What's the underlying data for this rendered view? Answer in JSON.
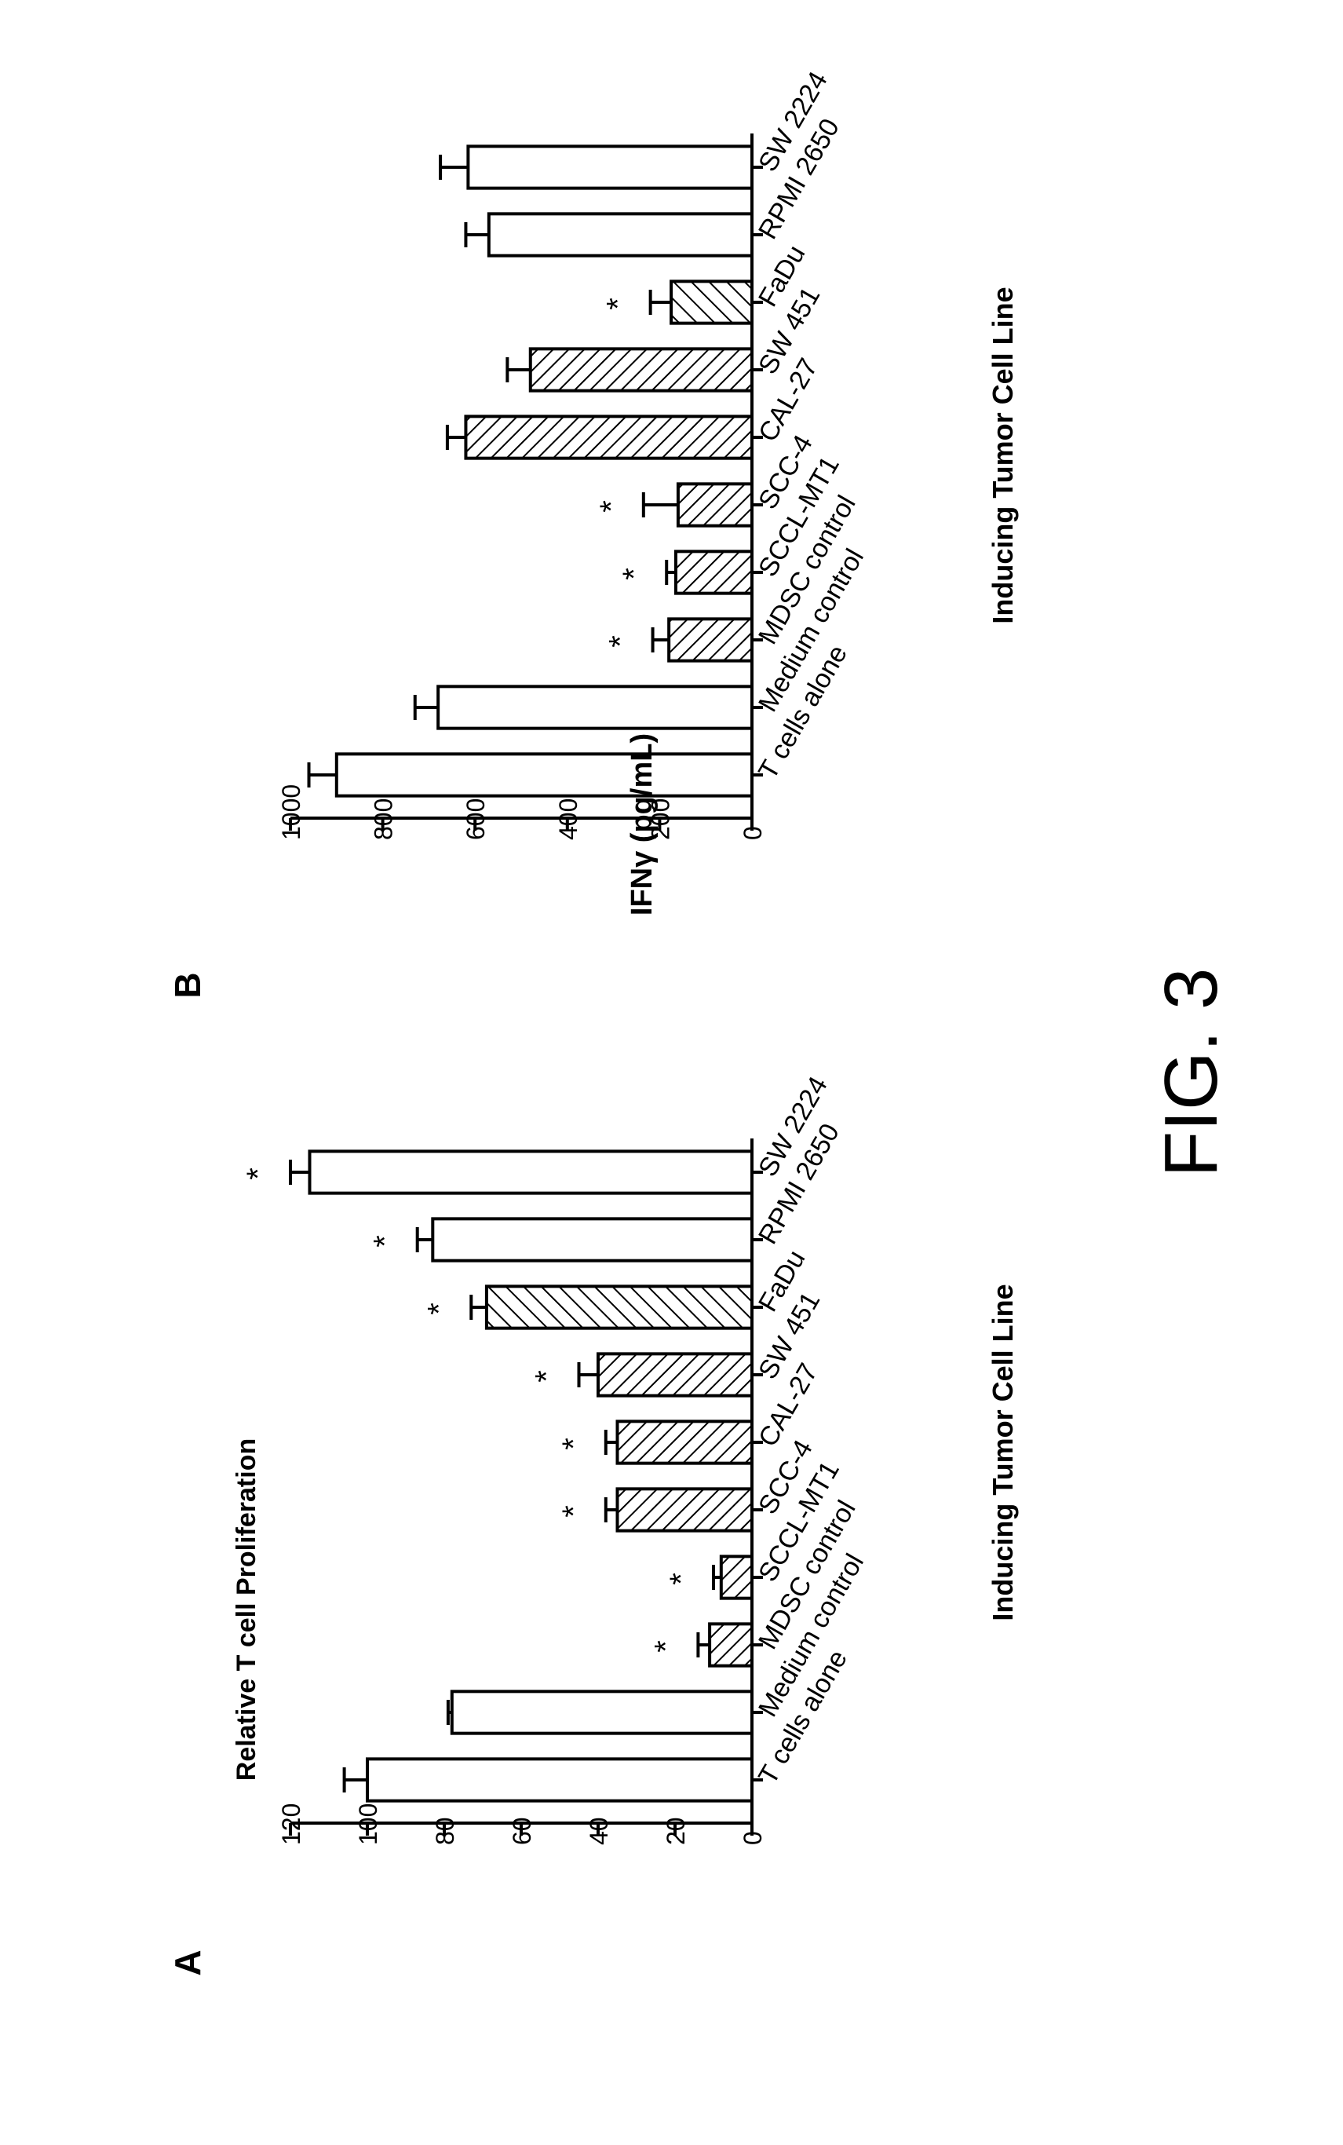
{
  "figure_label": "FIG. 3",
  "colors": {
    "ink": "#000000",
    "background": "#ffffff"
  },
  "chart_data": [
    {
      "type": "bar",
      "panel": "A",
      "title": "",
      "ylabel": "Relative T cell Proliferation",
      "xlabel": "Inducing Tumor Cell Line",
      "ylim": [
        0,
        120
      ],
      "yticks": [
        0,
        20,
        40,
        60,
        80,
        100,
        120
      ],
      "categories": [
        "T cells alone",
        "Medium control",
        "MDSC control",
        "SCCL-MT1",
        "SCC-4",
        "CAL-27",
        "SW 451",
        "FaDu",
        "RPMI 2650",
        "SW 2224"
      ],
      "values": [
        100,
        78,
        11,
        8,
        35,
        35,
        40,
        69,
        83,
        115
      ],
      "errors": [
        6,
        1,
        3,
        2,
        3,
        3,
        5,
        4,
        4,
        5
      ],
      "significant": [
        false,
        false,
        true,
        true,
        true,
        true,
        true,
        true,
        true,
        true
      ],
      "fill_patterns": [
        "none",
        "none",
        "hatch-forward",
        "hatch-forward",
        "hatch-forward",
        "hatch-forward",
        "hatch-forward",
        "hatch-back",
        "none",
        "none"
      ],
      "asterisk": "*",
      "grid": false,
      "legend": "none"
    },
    {
      "type": "bar",
      "panel": "B",
      "title": "",
      "ylabel": "IFNγ (pg/mL)",
      "xlabel": "Inducing Tumor Cell Line",
      "ylim": [
        0,
        1000
      ],
      "yticks": [
        0,
        200,
        400,
        600,
        800,
        1000
      ],
      "categories": [
        "T cells alone",
        "Medium control",
        "MDSC control",
        "SCCL-MT1",
        "SCC-4",
        "CAL-27",
        "SW 451",
        "FaDu",
        "RPMI 2650",
        "SW 2224"
      ],
      "values": [
        900,
        680,
        180,
        165,
        160,
        620,
        480,
        175,
        570,
        615
      ],
      "errors": [
        60,
        50,
        35,
        20,
        75,
        40,
        50,
        45,
        50,
        60
      ],
      "significant": [
        false,
        false,
        true,
        true,
        true,
        false,
        false,
        true,
        false,
        false
      ],
      "fill_patterns": [
        "none",
        "none",
        "hatch-forward",
        "hatch-forward",
        "hatch-forward",
        "hatch-forward",
        "hatch-forward",
        "hatch-back",
        "none",
        "none"
      ],
      "asterisk": "*",
      "grid": false,
      "legend": "none"
    }
  ]
}
